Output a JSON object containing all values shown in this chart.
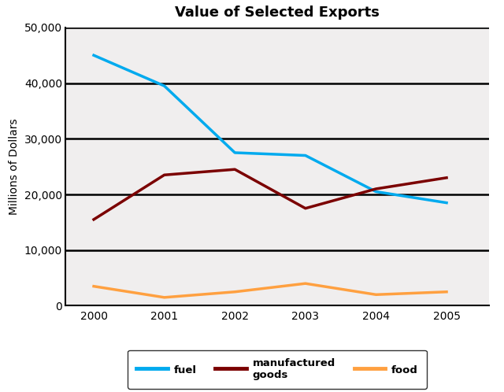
{
  "title": "Value of Selected Exports",
  "xlabel": "",
  "ylabel": "Millions of Dollars",
  "years": [
    2000,
    2001,
    2002,
    2003,
    2004,
    2005
  ],
  "fuel": [
    45000,
    39500,
    27500,
    27000,
    20500,
    18500
  ],
  "manufactured_goods": [
    15500,
    23500,
    24500,
    17500,
    21000,
    23000
  ],
  "food": [
    3500,
    1500,
    2500,
    4000,
    2000,
    2500
  ],
  "fuel_color": "#00AAEE",
  "manufactured_color": "#7B0000",
  "food_color": "#FFA040",
  "ylim": [
    0,
    50000
  ],
  "yticks": [
    0,
    10000,
    20000,
    30000,
    40000,
    50000
  ],
  "title_fontsize": 13,
  "axis_label_fontsize": 10,
  "background_color": "#ffffff",
  "plot_bg_color": "#f0eeee",
  "line_width": 2.5,
  "grid_color": "#000000",
  "grid_linewidth": 1.8
}
